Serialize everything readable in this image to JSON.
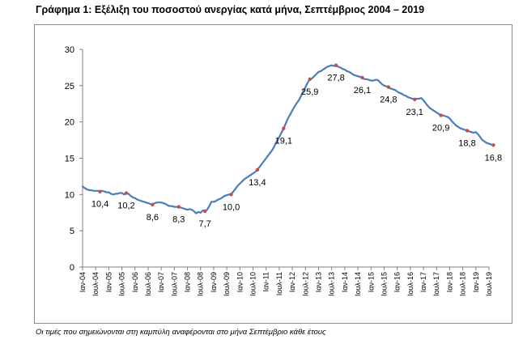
{
  "title": "Γράφημα 1: Εξέλιξη του ποσοστού ανεργίας κατά μήνα, Σεπτέμβριος 2004 – 2019",
  "footnote": "Οι τιμές που σημειώνονται στη καμπύλη αναφέρονται στο μήνα Σεπτέμβριο κάθε έτους",
  "colors": {
    "line": "#4a7ebb",
    "marker": "#c0504d",
    "axis": "#808080",
    "grid": "#d9d9d9"
  },
  "chart_data": {
    "type": "line",
    "title": "",
    "xlabel": "",
    "ylabel": "",
    "ylim": [
      0,
      30
    ],
    "yticks": [
      0,
      5,
      10,
      15,
      20,
      25,
      30
    ],
    "grid": false,
    "legend": "none",
    "x_tick_labels": [
      "Ιαν-04",
      "Ιουλ-04",
      "Ιαν-05",
      "Ιουλ-05",
      "Ιαν-06",
      "Ιουλ-06",
      "Ιαν-07",
      "Ιουλ-07",
      "Ιαν-08",
      "Ιουλ-08",
      "Ιαν-09",
      "Ιουλ-09",
      "Ιαν-10",
      "Ιουλ-10",
      "Ιαν-11",
      "Ιουλ-11",
      "Ιαν-12",
      "Ιουλ-12",
      "Ιαν-13",
      "Ιουλ-13",
      "Ιαν-14",
      "Ιουλ-14",
      "Ιαν-15",
      "Ιουλ-15",
      "Ιαν-16",
      "Ιουλ-16",
      "Ιαν-17",
      "Ιουλ-17",
      "Ιαν-18",
      "Ιουλ-18",
      "Ιαν-19",
      "Ιουλ-19"
    ],
    "series": [
      {
        "x_start": "2004-01",
        "values": [
          11.1,
          10.9,
          10.7,
          10.6,
          10.6,
          10.5,
          10.5,
          10.5,
          10.4,
          10.5,
          10.4,
          10.3,
          10.3,
          10.1,
          10.0,
          10.1,
          10.1,
          10.2,
          10.2,
          10.0,
          10.2,
          10.1,
          9.8,
          9.6,
          9.5,
          9.3,
          9.2,
          9.1,
          9.0,
          8.9,
          8.8,
          8.7,
          8.6,
          8.8,
          8.9,
          8.9,
          8.9,
          8.8,
          8.7,
          8.5,
          8.4,
          8.4,
          8.3,
          8.3,
          8.3,
          8.2,
          8.1,
          8.0,
          7.9,
          8.0,
          7.9,
          7.7,
          7.4,
          7.6,
          7.5,
          7.8,
          7.7,
          7.9,
          8.4,
          9.0,
          9.0,
          9.1,
          9.3,
          9.4,
          9.6,
          9.8,
          9.9,
          10.0,
          10.0,
          10.4,
          10.8,
          11.2,
          11.5,
          11.8,
          12.1,
          12.3,
          12.5,
          12.7,
          12.9,
          13.1,
          13.4,
          13.8,
          14.2,
          14.6,
          15.0,
          15.4,
          15.8,
          16.2,
          16.8,
          17.4,
          17.9,
          18.5,
          19.1,
          19.8,
          20.5,
          21.0,
          21.6,
          22.1,
          22.6,
          23.0,
          23.6,
          24.2,
          24.8,
          25.4,
          25.9,
          26.0,
          26.3,
          26.6,
          26.9,
          27.0,
          27.2,
          27.4,
          27.6,
          27.7,
          27.8,
          27.7,
          27.8,
          27.6,
          27.5,
          27.3,
          27.2,
          27.0,
          26.9,
          26.7,
          26.5,
          26.4,
          26.3,
          26.2,
          26.1,
          25.9,
          25.9,
          25.8,
          25.7,
          25.7,
          25.8,
          25.8,
          25.5,
          25.2,
          25.0,
          24.9,
          24.8,
          24.6,
          24.5,
          24.4,
          24.2,
          24.0,
          23.9,
          23.7,
          23.6,
          23.4,
          23.3,
          23.2,
          23.1,
          23.2,
          23.2,
          23.3,
          23.0,
          22.6,
          22.2,
          21.9,
          21.7,
          21.5,
          21.3,
          21.1,
          20.9,
          20.9,
          20.8,
          20.7,
          20.5,
          20.1,
          19.8,
          19.5,
          19.3,
          19.1,
          19.0,
          18.9,
          18.8,
          18.7,
          18.6,
          18.5,
          18.6,
          18.3,
          17.9,
          17.5,
          17.3,
          17.1,
          17.0,
          16.9,
          16.8
        ]
      }
    ],
    "markers": [
      {
        "date": "2004-09",
        "value": 10.4,
        "label": "10,4"
      },
      {
        "date": "2005-09",
        "value": 10.2,
        "label": "10,2"
      },
      {
        "date": "2006-09",
        "value": 8.6,
        "label": "8,6"
      },
      {
        "date": "2007-09",
        "value": 8.3,
        "label": "8,3"
      },
      {
        "date": "2008-09",
        "value": 7.7,
        "label": "7,7"
      },
      {
        "date": "2009-09",
        "value": 10.0,
        "label": "10,0"
      },
      {
        "date": "2010-09",
        "value": 13.4,
        "label": "13,4"
      },
      {
        "date": "2011-09",
        "value": 19.1,
        "label": "19,1"
      },
      {
        "date": "2012-09",
        "value": 25.9,
        "label": "25,9"
      },
      {
        "date": "2013-09",
        "value": 27.8,
        "label": "27,8"
      },
      {
        "date": "2014-09",
        "value": 26.1,
        "label": "26,1"
      },
      {
        "date": "2015-09",
        "value": 24.8,
        "label": "24,8"
      },
      {
        "date": "2016-09",
        "value": 23.1,
        "label": "23,1"
      },
      {
        "date": "2017-09",
        "value": 20.9,
        "label": "20,9"
      },
      {
        "date": "2018-09",
        "value": 18.8,
        "label": "18,8"
      },
      {
        "date": "2019-09",
        "value": 16.8,
        "label": "16,8"
      }
    ]
  }
}
